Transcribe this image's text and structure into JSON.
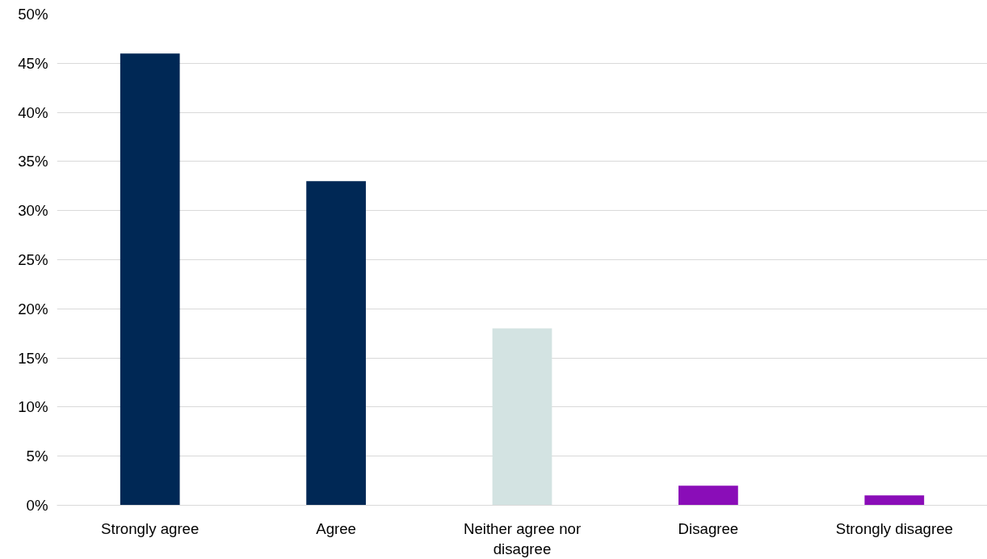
{
  "chart_data": {
    "type": "bar",
    "categories": [
      "Strongly agree",
      "Agree",
      "Neither agree nor disagree",
      "Disagree",
      "Strongly disagree"
    ],
    "values": [
      46,
      33,
      18,
      2,
      1
    ],
    "colors": [
      "#002855",
      "#002855",
      "#d3e3e2",
      "#8a0db8",
      "#8a0db8"
    ],
    "ylim": [
      0,
      50
    ],
    "yticks": [
      {
        "value": 0,
        "label": "0%"
      },
      {
        "value": 5,
        "label": "5%"
      },
      {
        "value": 10,
        "label": "10%"
      },
      {
        "value": 15,
        "label": "15%"
      },
      {
        "value": 20,
        "label": "20%"
      },
      {
        "value": 25,
        "label": "25%"
      },
      {
        "value": 30,
        "label": "30%"
      },
      {
        "value": 35,
        "label": "35%"
      },
      {
        "value": 40,
        "label": "40%"
      },
      {
        "value": 45,
        "label": "45%"
      },
      {
        "value": 50,
        "label": "50%"
      }
    ],
    "grid": "y"
  }
}
